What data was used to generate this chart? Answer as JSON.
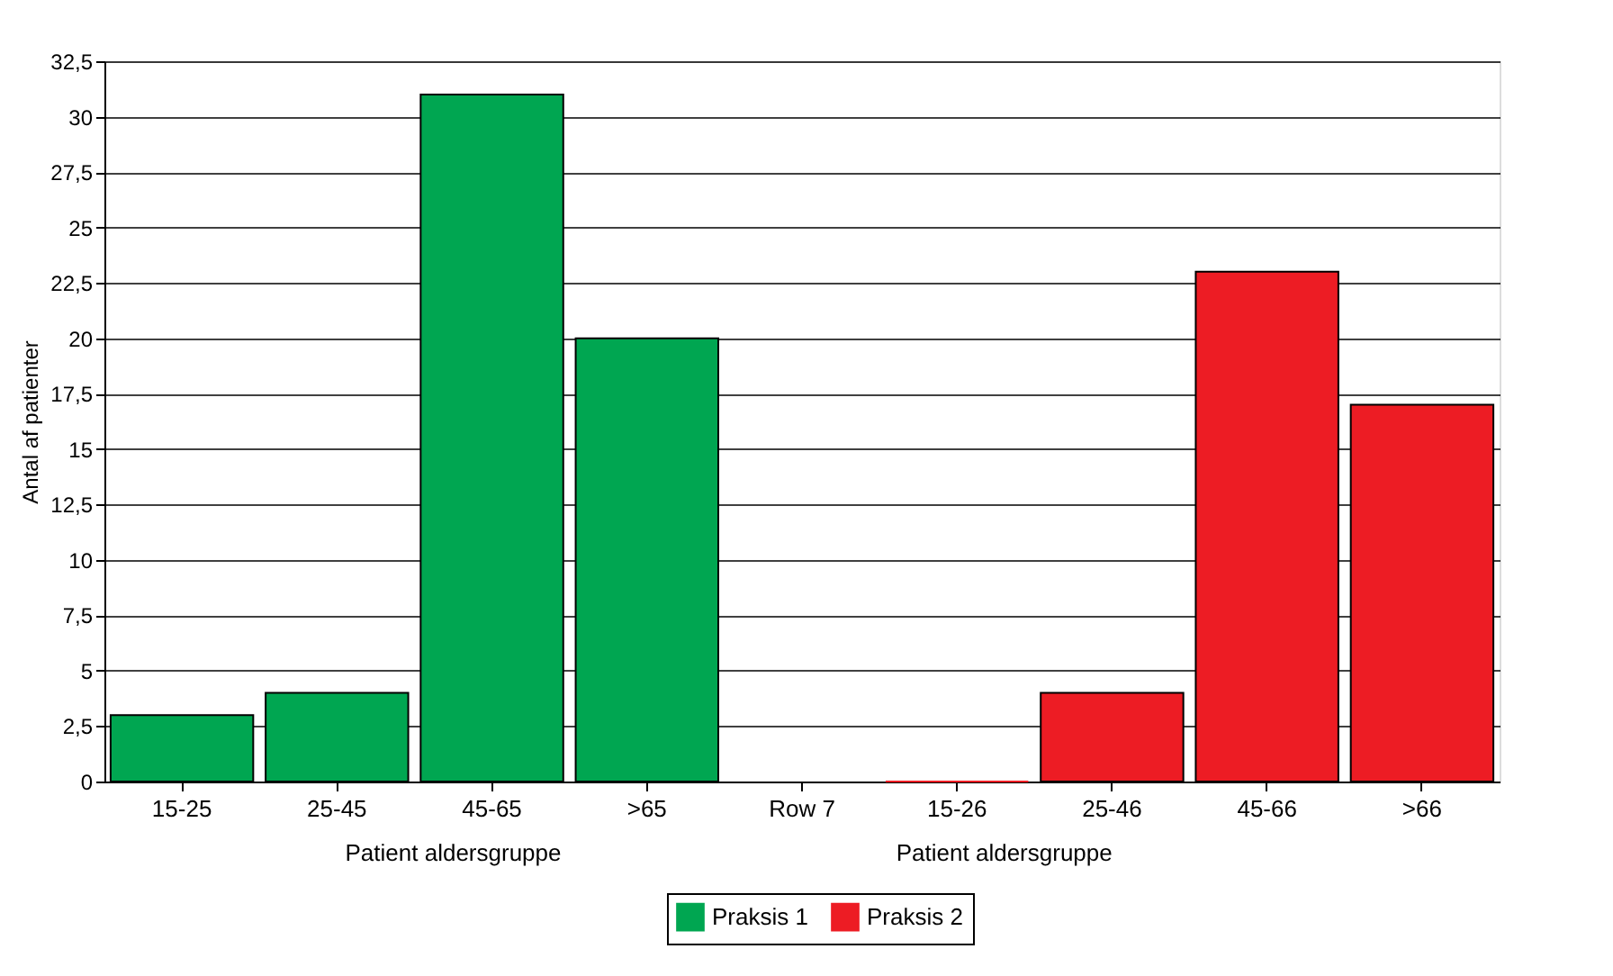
{
  "chart_data": {
    "type": "bar",
    "ylabel": "Antal af patienter",
    "categories": [
      "15-25",
      "25-45",
      "45-65",
      ">65",
      "Row 7",
      "15-26",
      "25-46",
      "45-66",
      ">66"
    ],
    "series": [
      {
        "name": "Praksis 1",
        "color": "#00a651",
        "values": [
          3,
          4,
          31,
          20,
          null,
          null,
          null,
          null,
          null
        ]
      },
      {
        "name": "Praksis 2",
        "color": "#ed1c24",
        "values": [
          null,
          null,
          null,
          null,
          null,
          0,
          4,
          23,
          17
        ]
      }
    ],
    "ylim": [
      0,
      32.5
    ],
    "yticks": [
      0,
      {
        "value": 2.5,
        "label": "2,5"
      },
      5,
      {
        "value": 7.5,
        "label": "7,5"
      },
      10,
      {
        "value": 12.5,
        "label": "12,5"
      },
      15,
      {
        "value": 17.5,
        "label": "17,5"
      },
      20,
      {
        "value": 22.5,
        "label": "22,5"
      },
      25,
      {
        "value": 27.5,
        "label": "27,5"
      },
      30,
      {
        "value": 32.5,
        "label": "32,5"
      }
    ],
    "grid": "y",
    "legend": "bottom",
    "annotations": [
      "Patient aldersgruppe",
      "Patient aldersgruppe"
    ]
  }
}
